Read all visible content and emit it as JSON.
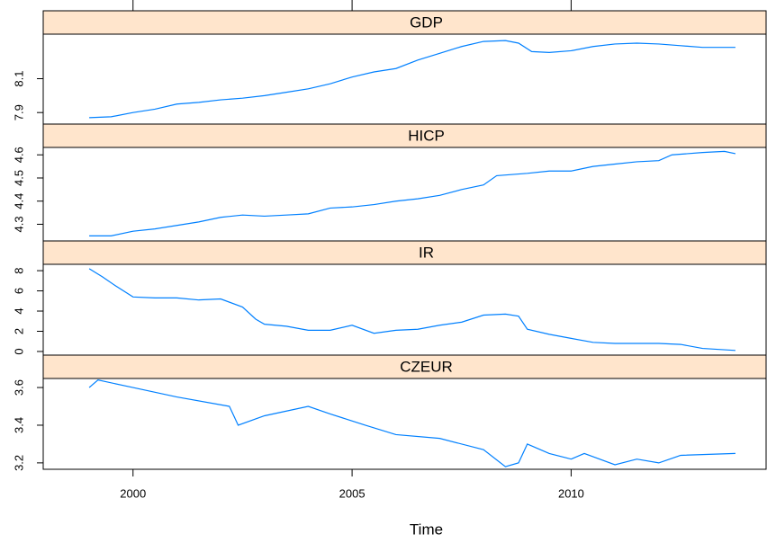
{
  "chart_data": [
    {
      "type": "line",
      "title": "GDP",
      "color": "#0080ff",
      "x": [
        1999,
        1999.5,
        2000,
        2000.5,
        2001,
        2001.5,
        2002,
        2002.5,
        2003,
        2003.5,
        2004,
        2004.5,
        2005,
        2005.5,
        2006,
        2006.5,
        2007,
        2007.5,
        2008,
        2008.5,
        2008.8,
        2009.1,
        2009.5,
        2010,
        2010.5,
        2011,
        2011.5,
        2012,
        2012.5,
        2013,
        2013.75
      ],
      "values": [
        7.87,
        7.875,
        7.9,
        7.92,
        7.95,
        7.96,
        7.975,
        7.985,
        8.0,
        8.02,
        8.04,
        8.07,
        8.11,
        8.14,
        8.16,
        8.21,
        8.25,
        8.29,
        8.32,
        8.325,
        8.31,
        8.26,
        8.255,
        8.265,
        8.29,
        8.305,
        8.31,
        8.305,
        8.295,
        8.285,
        8.285
      ],
      "xlim": [
        1997.95,
        2014.45
      ],
      "xticks": [
        2000,
        2005,
        2010
      ],
      "ylim": [
        7.832,
        8.363
      ],
      "yticks": [
        7.9,
        8.1
      ]
    },
    {
      "type": "line",
      "title": "HICP",
      "color": "#0080ff",
      "x": [
        1999,
        1999.5,
        2000,
        2000.5,
        2001,
        2001.5,
        2002,
        2002.5,
        2003,
        2003.5,
        2004,
        2004.5,
        2005,
        2005.5,
        2006,
        2006.5,
        2007,
        2007.5,
        2008,
        2008.3,
        2009,
        2009.5,
        2010,
        2010.5,
        2011,
        2011.5,
        2012,
        2012.3,
        2013,
        2013.5,
        2013.75
      ],
      "values": [
        4.25,
        4.25,
        4.27,
        4.28,
        4.295,
        4.31,
        4.33,
        4.34,
        4.335,
        4.34,
        4.345,
        4.37,
        4.375,
        4.385,
        4.4,
        4.41,
        4.425,
        4.45,
        4.47,
        4.51,
        4.52,
        4.53,
        4.53,
        4.55,
        4.56,
        4.57,
        4.575,
        4.6,
        4.61,
        4.615,
        4.605
      ],
      "xlim": [
        1997.95,
        2014.45
      ],
      "xticks": [
        2000,
        2005,
        2010
      ],
      "ylim": [
        4.228,
        4.632
      ],
      "yticks": [
        4.3,
        4.4,
        4.5,
        4.6
      ]
    },
    {
      "type": "line",
      "title": "IR",
      "color": "#0080ff",
      "x": [
        1999,
        1999.3,
        1999.6,
        2000,
        2000.5,
        2001,
        2001.5,
        2002,
        2002.5,
        2002.8,
        2003,
        2003.5,
        2004,
        2004.5,
        2005,
        2005.5,
        2006,
        2006.5,
        2007,
        2007.5,
        2008,
        2008.5,
        2008.8,
        2009,
        2009.5,
        2010,
        2010.5,
        2011,
        2012,
        2012.5,
        2013,
        2013.75
      ],
      "values": [
        8.2,
        7.4,
        6.5,
        5.4,
        5.3,
        5.3,
        5.1,
        5.2,
        4.4,
        3.2,
        2.7,
        2.5,
        2.1,
        2.1,
        2.6,
        1.8,
        2.1,
        2.2,
        2.6,
        2.9,
        3.6,
        3.7,
        3.5,
        2.2,
        1.7,
        1.3,
        0.9,
        0.8,
        0.8,
        0.7,
        0.3,
        0.1
      ],
      "xlim": [
        1997.95,
        2014.45
      ],
      "xticks": [
        2000,
        2005,
        2010
      ],
      "ylim": [
        -0.36,
        8.63
      ],
      "yticks": [
        0,
        2,
        4,
        6,
        8
      ]
    },
    {
      "type": "line",
      "title": "CZEUR",
      "color": "#0080ff",
      "xlabel": "Time",
      "x": [
        1999,
        1999.2,
        2000,
        2001,
        2002.2,
        2002.4,
        2003,
        2004,
        2004.5,
        2005.3,
        2006,
        2007,
        2008,
        2008.5,
        2008.8,
        2009,
        2009.5,
        2010,
        2010.3,
        2011,
        2011.5,
        2012,
        2012.5,
        2013.75
      ],
      "values": [
        3.6,
        3.64,
        3.6,
        3.55,
        3.5,
        3.4,
        3.45,
        3.5,
        3.46,
        3.4,
        3.35,
        3.33,
        3.27,
        3.18,
        3.2,
        3.3,
        3.25,
        3.22,
        3.25,
        3.19,
        3.22,
        3.2,
        3.24,
        3.25
      ],
      "xlim": [
        1997.95,
        2014.45
      ],
      "xticks": [
        2000,
        2005,
        2010
      ],
      "ylim": [
        3.166,
        3.648
      ],
      "yticks": [
        3.2,
        3.4,
        3.6
      ]
    }
  ]
}
